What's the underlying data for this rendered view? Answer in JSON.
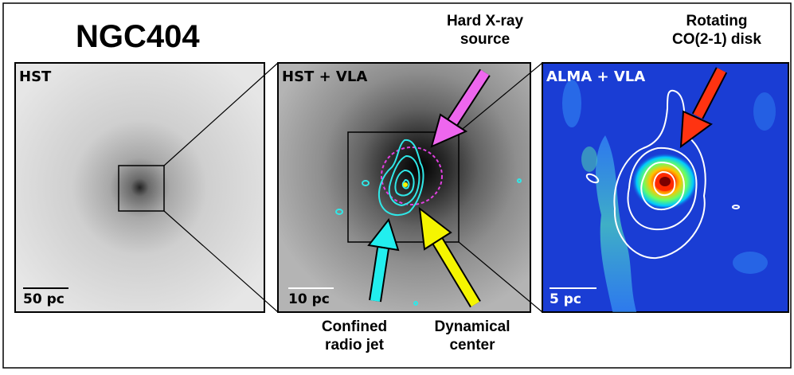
{
  "figure": {
    "title": "NGC404",
    "panels": [
      {
        "label": "HST",
        "scale_bar": "50 pc"
      },
      {
        "label": "HST + VLA",
        "scale_bar": "10 pc"
      },
      {
        "label": "ALMA + VLA",
        "scale_bar": "5 pc"
      }
    ],
    "annotations": {
      "xray": "Hard X-ray\nsource",
      "co_disk": "Rotating\nCO(2-1) disk",
      "radio_jet": "Confined\nradio jet",
      "dynamical_center": "Dynamical\ncenter"
    },
    "colors": {
      "radio_contours_panel2": "#2fe8e8",
      "xray_circle": "#e040e0",
      "xray_arrow": "#ee66ee",
      "jet_arrow": "#22eeee",
      "center_arrow": "#f5f500",
      "co_arrow": "#ff3311",
      "radio_contours_panel3": "#ffffff",
      "alma_background": "#1a3dd4"
    }
  }
}
